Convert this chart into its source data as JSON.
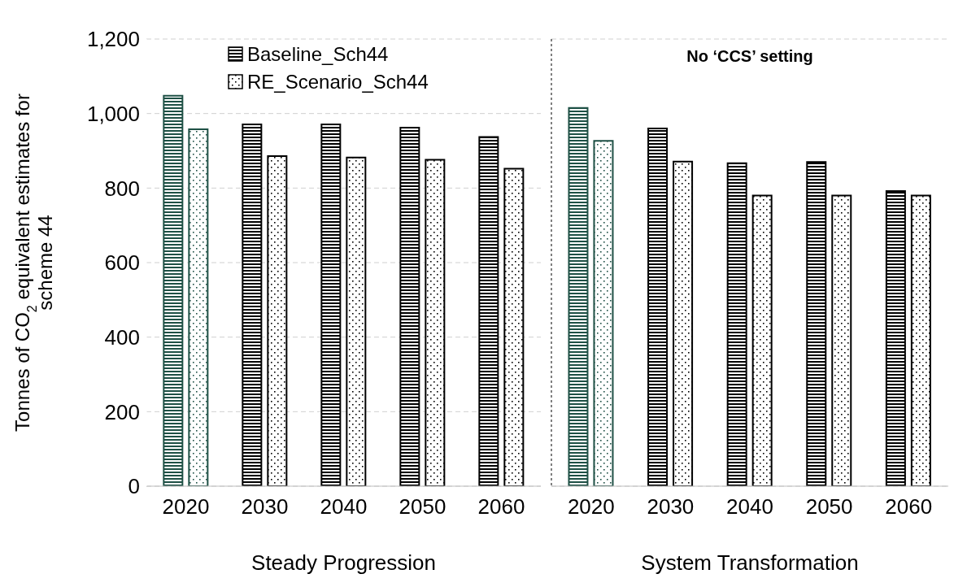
{
  "chart_data": [
    {
      "type": "bar",
      "ylabel": "Tonnes of CO$_{2}$ equivalent estimates for scheme 44",
      "xlabel": "Steady Progression",
      "categories": [
        "2020",
        "2030",
        "2040",
        "2050",
        "2060"
      ],
      "series": [
        {
          "name": "Baseline_Sch44",
          "color": "#000000",
          "colors": [
            "#1e5045",
            "#000000",
            "#000000",
            "#000000",
            "#000000"
          ],
          "values": [
            1048,
            971,
            971,
            962,
            937
          ]
        },
        {
          "name": "RE_Scenario_Sch44",
          "color": "#000000",
          "colors": [
            "#1e5045",
            "#000000",
            "#000000",
            "#000000",
            "#000000"
          ],
          "values": [
            958,
            886,
            882,
            876,
            852
          ]
        }
      ],
      "ylim": [
        0,
        1200
      ],
      "yticks": [
        0,
        200,
        400,
        600,
        800,
        {
          "value": 1000,
          "label": "1,000"
        },
        {
          "value": 1200,
          "label": "1,200"
        }
      ],
      "grid": "y",
      "legend": "top left"
    },
    {
      "type": "bar",
      "title": "No ‘CCS’ setting",
      "xlabel": "System Transformation",
      "categories": [
        "2020",
        "2030",
        "2040",
        "2050",
        "2060"
      ],
      "series": [
        {
          "color": "#000000",
          "colors": [
            "#1e5045",
            "#000000",
            "#000000",
            "#000000",
            "#000000"
          ],
          "values": [
            1015,
            960,
            867,
            870,
            792
          ]
        },
        {
          "color": "#000000",
          "colors": [
            "#1e5045",
            "#000000",
            "#000000",
            "#000000",
            "#000000"
          ],
          "values": [
            927,
            871,
            780,
            780,
            780
          ]
        }
      ],
      "ylim": [
        0,
        1200
      ],
      "yticks": [
        0,
        200,
        400,
        600,
        800,
        1000,
        1200
      ],
      "grid": "y",
      "tick_labels": "x"
    }
  ]
}
